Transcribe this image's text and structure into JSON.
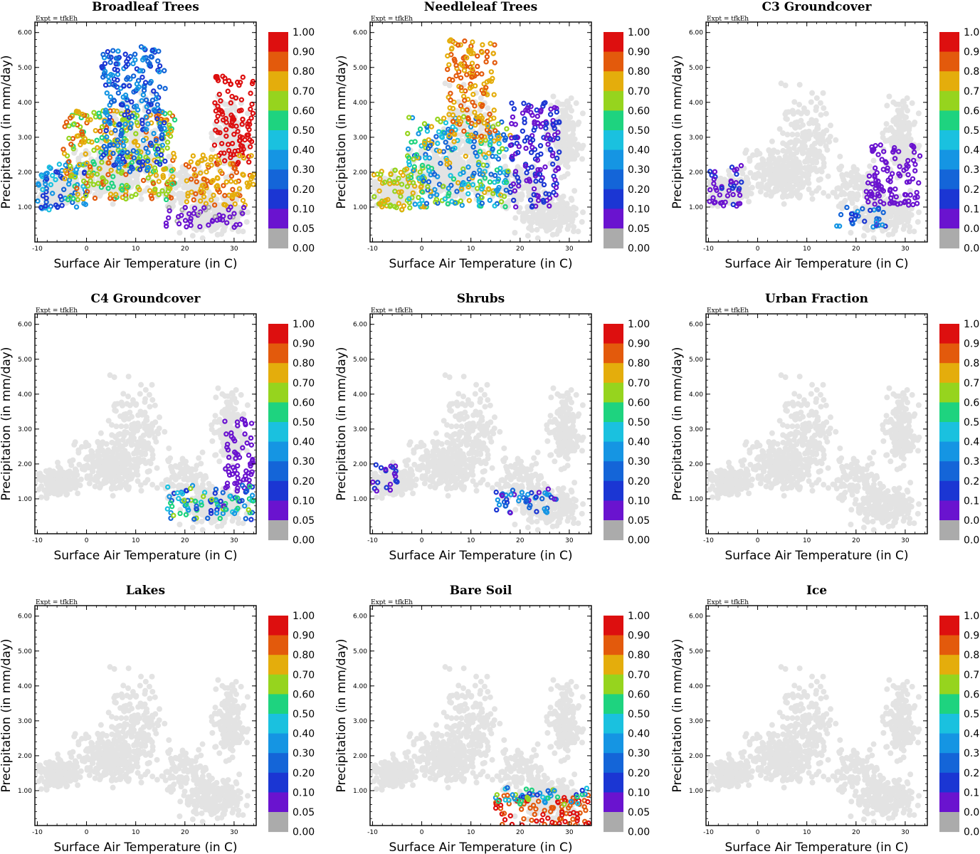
{
  "chart_data": {
    "type": "scatter",
    "shared": {
      "experiment_label": "Expt = tfkEh",
      "xlabel": "Surface Air Temperature (in C)",
      "ylabel": "Precipitation (in mm/day)",
      "xlim": [
        -10.5,
        34.5
      ],
      "ylim": [
        0.0,
        6.3
      ],
      "x_ticks": [
        -10,
        0,
        10,
        20,
        30
      ],
      "y_ticks": [
        1.0,
        2.0,
        3.0,
        4.0,
        5.0,
        6.0
      ],
      "y_tick_labels": [
        "1.00",
        "2.00",
        "3.00",
        "4.00",
        "5.00",
        "6.00"
      ],
      "colorbar": {
        "labels": [
          "1.00",
          "0.90",
          "0.80",
          "0.70",
          "0.60",
          "0.50",
          "0.40",
          "0.30",
          "0.20",
          "0.10",
          "0.05",
          "0.00"
        ],
        "colors": [
          "#dd0f0f",
          "#e35a0c",
          "#e4ad0c",
          "#96d41e",
          "#1ed37f",
          "#1ac1df",
          "#1595e3",
          "#1465d8",
          "#1b36d3",
          "#6a13cf",
          "#ababab",
          "#ababab"
        ]
      },
      "background_color": "#e3e3e3",
      "zero_fraction_color": "#ababab"
    },
    "panels": [
      {
        "id": "broadleaf",
        "title": "Broadleaf Trees",
        "clusters": [
          {
            "region": "cold",
            "x_range": [
              -10,
              0
            ],
            "y_range": [
              0.9,
              2.3
            ],
            "fraction_range": [
              0.1,
              0.5
            ]
          },
          {
            "region": "mid",
            "x_range": [
              -5,
              18
            ],
            "y_range": [
              1.2,
              3.8
            ],
            "fraction_range": [
              0.55,
              0.85
            ]
          },
          {
            "region": "mid-upper",
            "x_range": [
              3,
              16
            ],
            "y_range": [
              2.0,
              5.6
            ],
            "fraction_range": [
              0.1,
              0.4
            ]
          },
          {
            "region": "hot",
            "x_range": [
              26,
              34
            ],
            "y_range": [
              2.2,
              4.8
            ],
            "fraction_range": [
              0.9,
              1.0
            ]
          },
          {
            "region": "hot-lower",
            "x_range": [
              20,
              34
            ],
            "y_range": [
              1.0,
              2.5
            ],
            "fraction_range": [
              0.7,
              0.85
            ]
          },
          {
            "region": "dry",
            "x_range": [
              16,
              32
            ],
            "y_range": [
              0.4,
              1.0
            ],
            "fraction_range": [
              0.0,
              0.1
            ]
          }
        ]
      },
      {
        "id": "needleleaf",
        "title": "Needleleaf Trees",
        "clusters": [
          {
            "region": "cold",
            "x_range": [
              -10,
              0
            ],
            "y_range": [
              0.9,
              2.1
            ],
            "fraction_range": [
              0.6,
              0.8
            ]
          },
          {
            "region": "mid",
            "x_range": [
              -3,
              18
            ],
            "y_range": [
              1.0,
              3.6
            ],
            "fraction_range": [
              0.2,
              0.8
            ]
          },
          {
            "region": "mid-upper",
            "x_range": [
              5,
              15
            ],
            "y_range": [
              3.0,
              5.8
            ],
            "fraction_range": [
              0.7,
              0.9
            ]
          },
          {
            "region": "warm",
            "x_range": [
              18,
              28
            ],
            "y_range": [
              1.0,
              4.0
            ],
            "fraction_range": [
              0.05,
              0.15
            ]
          }
        ]
      },
      {
        "id": "c3",
        "title": "C3 Groundcover",
        "clusters": [
          {
            "region": "cold",
            "x_range": [
              -10,
              -3
            ],
            "y_range": [
              1.0,
              2.2
            ],
            "fraction_range": [
              0.05,
              0.12
            ]
          },
          {
            "region": "hot",
            "x_range": [
              22,
              33
            ],
            "y_range": [
              1.0,
              2.8
            ],
            "fraction_range": [
              0.05,
              0.1
            ]
          },
          {
            "region": "dry",
            "x_range": [
              16,
              26
            ],
            "y_range": [
              0.4,
              1.0
            ],
            "fraction_range": [
              0.05,
              0.4
            ]
          }
        ]
      },
      {
        "id": "c4",
        "title": "C4 Groundcover",
        "clusters": [
          {
            "region": "hot",
            "x_range": [
              28,
              34
            ],
            "y_range": [
              1.2,
              3.3
            ],
            "fraction_range": [
              0.05,
              0.1
            ]
          },
          {
            "region": "dry",
            "x_range": [
              16,
              34
            ],
            "y_range": [
              0.4,
              1.4
            ],
            "fraction_range": [
              0.05,
              0.7
            ]
          }
        ]
      },
      {
        "id": "shrubs",
        "title": "Shrubs",
        "clusters": [
          {
            "region": "cold",
            "x_range": [
              -10,
              -5
            ],
            "y_range": [
              1.2,
              2.0
            ],
            "fraction_range": [
              0.05,
              0.15
            ]
          },
          {
            "region": "warm",
            "x_range": [
              15,
              28
            ],
            "y_range": [
              0.6,
              1.3
            ],
            "fraction_range": [
              0.05,
              0.4
            ]
          }
        ]
      },
      {
        "id": "urban",
        "title": "Urban Fraction",
        "clusters": []
      },
      {
        "id": "lakes",
        "title": "Lakes",
        "clusters": []
      },
      {
        "id": "baresoil",
        "title": "Bare Soil",
        "clusters": [
          {
            "region": "low",
            "x_range": [
              15,
              34
            ],
            "y_range": [
              0.0,
              0.9
            ],
            "fraction_range": [
              0.8,
              1.0
            ]
          },
          {
            "region": "low-fringe",
            "x_range": [
              15,
              34
            ],
            "y_range": [
              0.6,
              1.1
            ],
            "fraction_range": [
              0.1,
              0.7
            ]
          }
        ]
      },
      {
        "id": "ice",
        "title": "Ice",
        "clusters": []
      }
    ]
  }
}
